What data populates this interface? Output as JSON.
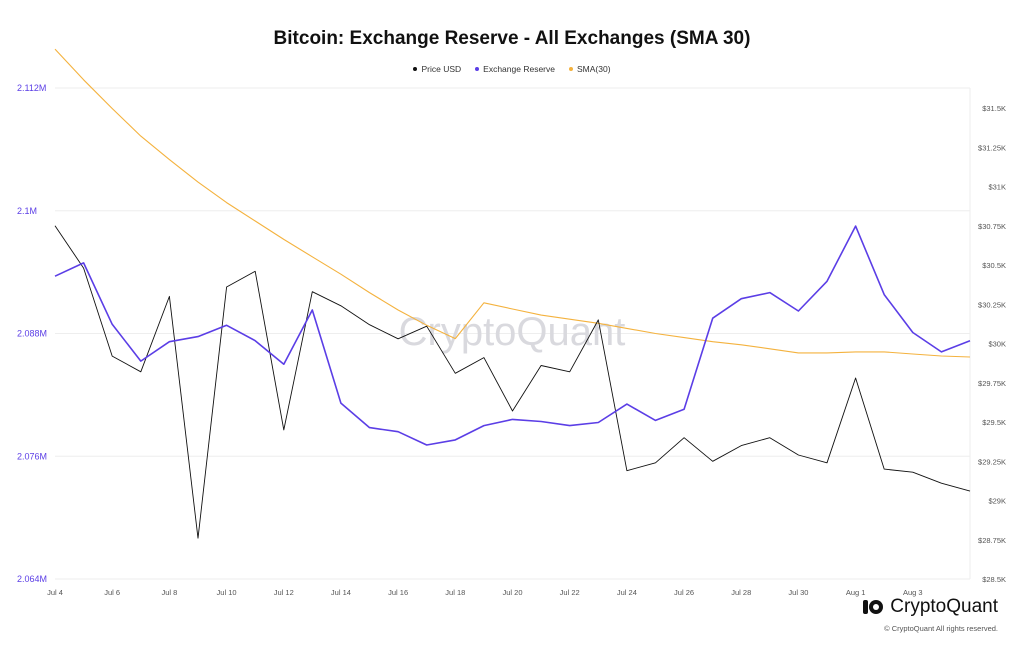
{
  "colors": {
    "price": "#111111",
    "reserve": "#5b3ee6",
    "sma": "#f4b23e",
    "grid": "#eeeeee",
    "watermark": "#d9d9de"
  },
  "watermark": "CryptoQuant",
  "brand": {
    "name": "CryptoQuant",
    "copyright": "© CryptoQuant All rights reserved."
  },
  "chart_data": {
    "type": "line",
    "title": "Bitcoin: Exchange Reserve - All Exchanges (SMA 30)",
    "legend_position": "top",
    "grid": true,
    "x": [
      "Jul 4",
      "Jul 5",
      "Jul 6",
      "Jul 7",
      "Jul 8",
      "Jul 9",
      "Jul 10",
      "Jul 11",
      "Jul 12",
      "Jul 13",
      "Jul 14",
      "Jul 15",
      "Jul 16",
      "Jul 17",
      "Jul 18",
      "Jul 19",
      "Jul 20",
      "Jul 21",
      "Jul 22",
      "Jul 23",
      "Jul 24",
      "Jul 25",
      "Jul 26",
      "Jul 27",
      "Jul 28",
      "Jul 29",
      "Jul 30",
      "Jul 31",
      "Aug 1",
      "Aug 2",
      "Aug 3",
      "Aug 4",
      "Aug 5"
    ],
    "x_tick_labels": [
      "Jul 4",
      "Jul 6",
      "Jul 8",
      "Jul 10",
      "Jul 12",
      "Jul 14",
      "Jul 16",
      "Jul 18",
      "Jul 20",
      "Jul 22",
      "Jul 24",
      "Jul 26",
      "Jul 28",
      "Jul 30",
      "Aug 1",
      "Aug 3"
    ],
    "y_left": {
      "ticks": [
        "2.064M",
        "2.076M",
        "2.088M",
        "2.1M",
        "2.112M"
      ],
      "tick_values": [
        2.064,
        2.076,
        2.088,
        2.1,
        2.112
      ],
      "range": [
        2.064,
        2.112
      ],
      "unit": "M"
    },
    "y_right": {
      "ticks": [
        "$28.5K",
        "$28.75K",
        "$29K",
        "$29.25K",
        "$29.5K",
        "$29.75K",
        "$30K",
        "$30.25K",
        "$30.5K",
        "$30.75K",
        "$31K",
        "$31.25K",
        "$31.5K"
      ],
      "tick_values": [
        28500,
        28750,
        29000,
        29250,
        29500,
        29750,
        30000,
        30250,
        30500,
        30750,
        31000,
        31250,
        31500
      ],
      "range": [
        28500,
        31500
      ]
    },
    "series": [
      {
        "name": "Price USD",
        "axis": "right",
        "values": [
          30750,
          30480,
          29920,
          29820,
          30300,
          28760,
          30360,
          30460,
          29450,
          30330,
          30240,
          30120,
          30030,
          30110,
          29810,
          29910,
          29570,
          29860,
          29820,
          30150,
          29190,
          29240,
          29400,
          29250,
          29350,
          29400,
          29290,
          29240,
          29780,
          29200,
          29180,
          29110,
          29060
        ]
      },
      {
        "name": "Exchange Reserve",
        "axis": "left",
        "values": [
          2.0936,
          2.0949,
          2.0889,
          2.0853,
          2.0872,
          2.0877,
          2.0888,
          2.0873,
          2.085,
          2.0903,
          2.0812,
          2.0788,
          2.0784,
          2.0771,
          2.0776,
          2.079,
          2.0796,
          2.0794,
          2.079,
          2.0793,
          2.0811,
          2.0795,
          2.0806,
          2.0895,
          2.0914,
          2.092,
          2.0902,
          2.0931,
          2.0985,
          2.0918,
          2.0881,
          2.0862,
          2.0873
        ]
      },
      {
        "name": "SMA(30)",
        "axis": "left",
        "values": [
          2.1158,
          2.1128,
          2.11,
          2.1073,
          2.105,
          2.1028,
          2.1008,
          2.099,
          2.0972,
          2.0955,
          2.0938,
          2.092,
          2.0903,
          2.0888,
          2.0875,
          2.091,
          2.0904,
          2.0898,
          2.0894,
          2.089,
          2.0885,
          2.088,
          2.0876,
          2.0872,
          2.0869,
          2.0865,
          2.0861,
          2.0861,
          2.0862,
          2.0862,
          2.086,
          2.0858,
          2.0857
        ]
      }
    ]
  }
}
